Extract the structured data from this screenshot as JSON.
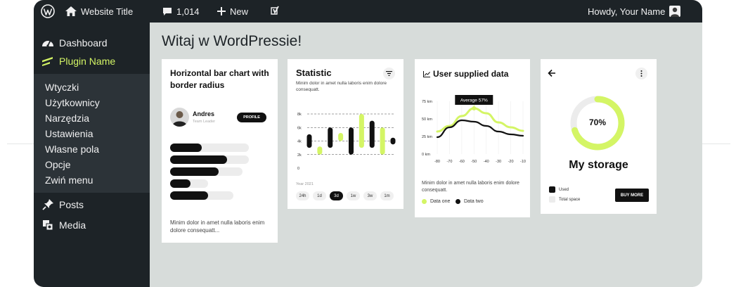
{
  "adminbar": {
    "site_title": "Website Title",
    "comments_count": "1,014",
    "new_label": "New",
    "howdy": "Howdy, Your Name"
  },
  "sidebar": {
    "dashboard": "Dashboard",
    "plugin": "Plugin Name",
    "submenu": [
      "Wtyczki",
      "Użytkownicy",
      "Narzędzia",
      "Ustawienia",
      "Własne pola",
      "Opcje",
      "Zwiń menu"
    ],
    "posts": "Posts",
    "media": "Media",
    "accent_color": "#d4f565"
  },
  "page": {
    "title": "Witaj w WordPressie!"
  },
  "card1": {
    "title": "Horizontal bar chart with border radius",
    "user_name": "Andres",
    "user_role": "Team Leader",
    "profile_button": "PROFILE",
    "footer_text": "Minim dolor in amet nulla laboris enim dolore consequatt...",
    "chart_data": {
      "type": "bar",
      "orientation": "horizontal",
      "values": [
        0.4,
        0.72,
        0.62,
        0.26,
        0.48
      ],
      "track_lengths": [
        1.0,
        1.0,
        0.92,
        0.48,
        0.8
      ]
    }
  },
  "card2": {
    "title": "Statistic",
    "subtitle": "Minim dolor in amet nulla laboris enim dolore consequatt.",
    "period_label": "Year 2021",
    "pills": [
      "24h",
      "1d",
      "3d",
      "1w",
      "3w",
      "1m"
    ],
    "active_pill": "3d",
    "filter_icon": "filter-icon",
    "chart_data": {
      "type": "bar",
      "yticks": [
        "8k",
        "6k",
        "4k",
        "2k",
        "0"
      ],
      "ylim": [
        0,
        8
      ],
      "series": [
        {
          "color": "#111111",
          "ranges": [
            [
              3.0,
              5.0
            ],
            null,
            [
              3.0,
              6.0
            ],
            null,
            [
              2.0,
              6.0
            ],
            null,
            [
              3.0,
              7.0
            ],
            null,
            [
              3.5,
              4.5
            ]
          ]
        },
        {
          "color": "#d4f565",
          "ranges": [
            null,
            [
              2.0,
              3.2
            ],
            null,
            [
              4.0,
              5.2
            ],
            null,
            [
              3.0,
              8.0
            ],
            null,
            [
              2.0,
              6.0
            ],
            null
          ]
        }
      ]
    }
  },
  "card3": {
    "title": "User supplied data",
    "tooltip": "Average 57%",
    "footer_text": "Minim dolor in amet nulla laboris enim dolore consequatt.",
    "legend": [
      "Data one",
      "Data two"
    ],
    "chart_data": {
      "type": "line",
      "x": [
        -80,
        -70,
        -60,
        -50,
        -40,
        -30,
        -20,
        -10
      ],
      "xticks": [
        "-80",
        "-70",
        "-60",
        "-50",
        "-40",
        "-30",
        "-20",
        "-10"
      ],
      "yticks": [
        "75 km",
        "50 km",
        "25 km",
        "0 km"
      ],
      "ylim": [
        0,
        75
      ],
      "series": [
        {
          "name": "Data one",
          "color": "#d4f565",
          "values": [
            32,
            40,
            54,
            65,
            58,
            45,
            38,
            33
          ]
        },
        {
          "name": "Data two",
          "color": "#111111",
          "values": [
            24,
            38,
            48,
            46,
            40,
            32,
            28,
            26
          ]
        }
      ]
    }
  },
  "card4": {
    "percent_label": "70%",
    "percent_value": 0.7,
    "title": "My storage",
    "legend_used": "Used",
    "legend_total": "Total space",
    "buy_button": "BUY MORE",
    "back_icon": "arrow-left-icon",
    "more_icon": "more-vertical-icon"
  }
}
